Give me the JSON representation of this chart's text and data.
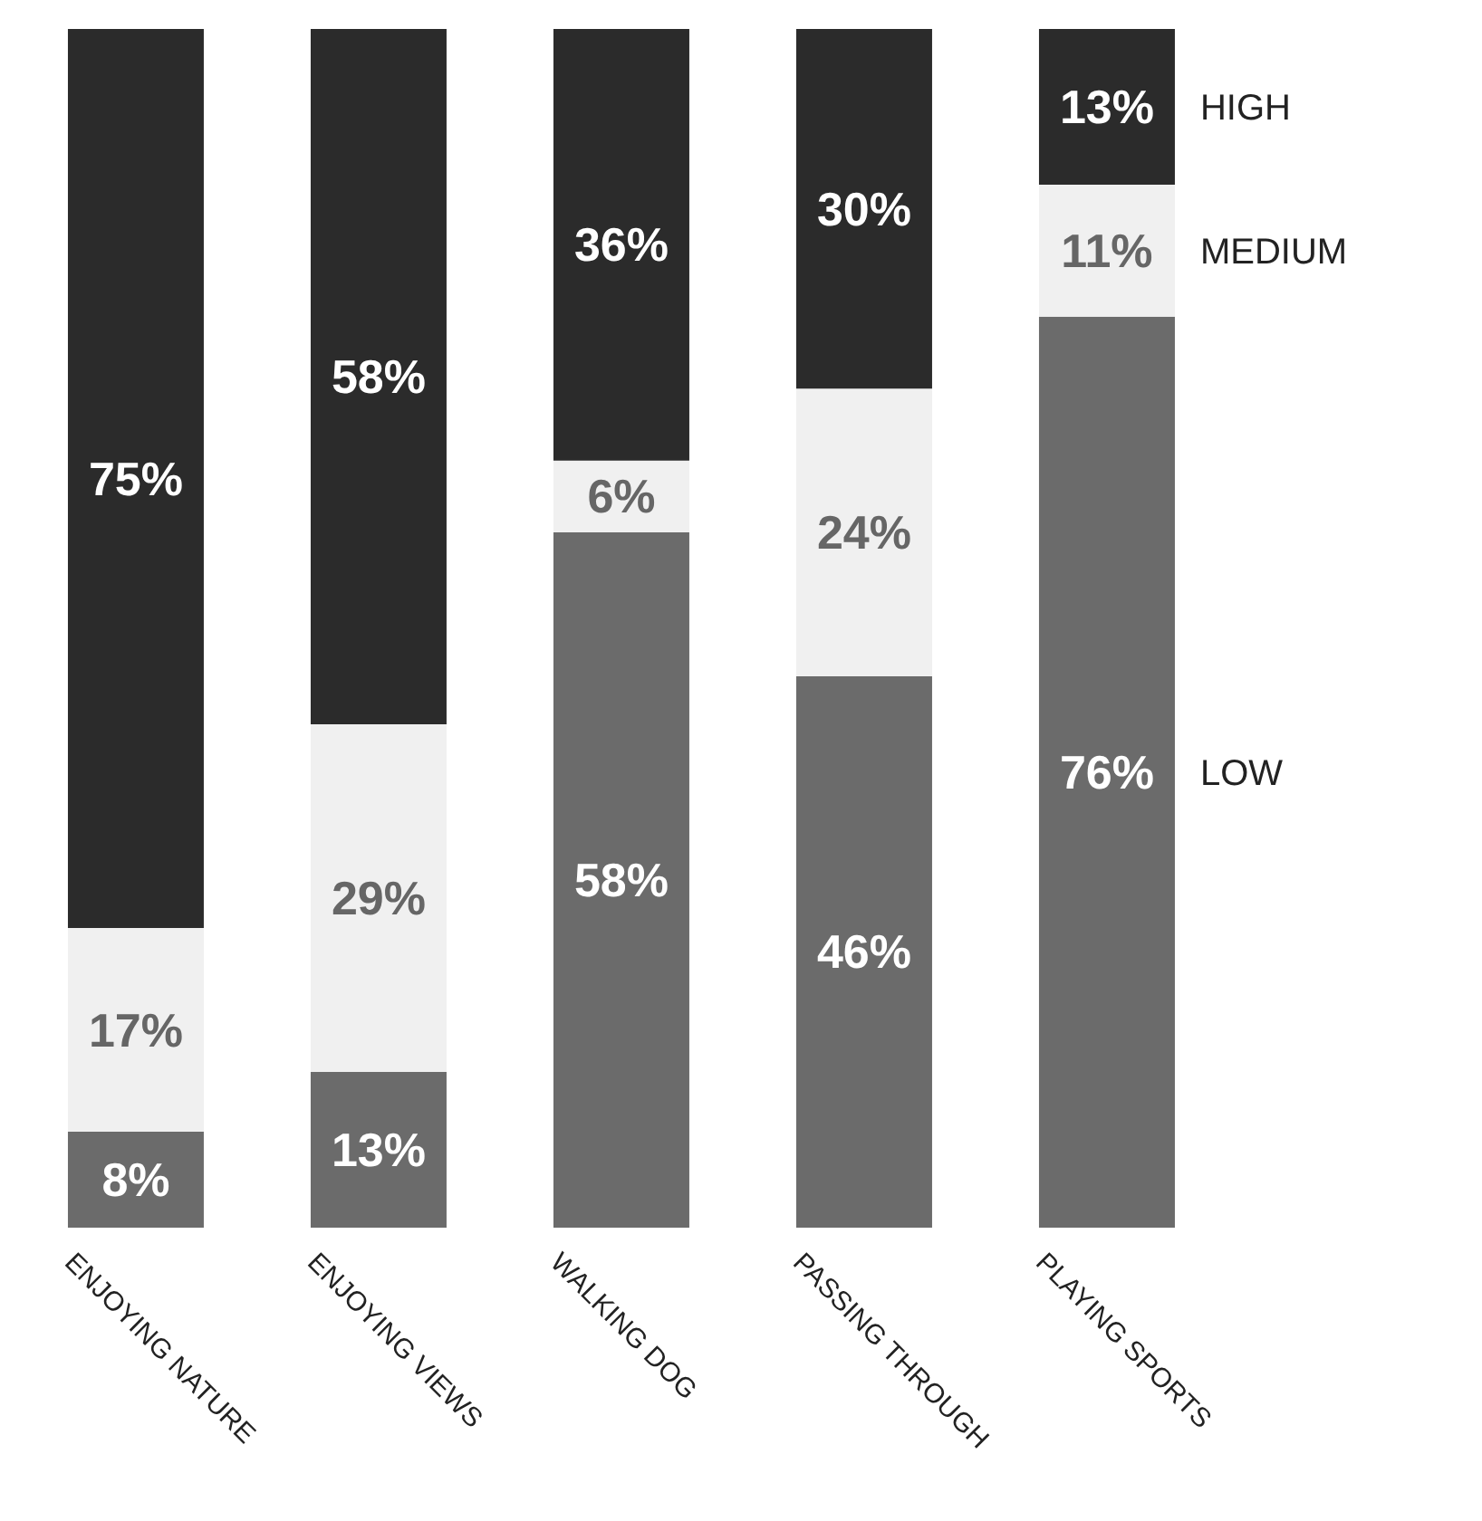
{
  "chart_data": {
    "type": "bar",
    "stacked": true,
    "categories": [
      "ENJOYING NATURE",
      "ENJOYING VIEWS",
      "WALKING DOG",
      "PASSING THROUGH",
      "PLAYING SPORTS"
    ],
    "series": [
      {
        "name": "LOW",
        "color": "#6b6b6b",
        "values": [
          8,
          13,
          58,
          46,
          76
        ],
        "value_labels": [
          "8%",
          "13%",
          "58%",
          "46%",
          "76%"
        ]
      },
      {
        "name": "MEDIUM",
        "color": "#f0f0f0",
        "values": [
          17,
          29,
          6,
          24,
          11
        ],
        "value_labels": [
          "17%",
          "29%",
          "6%",
          "24%",
          "11%"
        ]
      },
      {
        "name": "HIGH",
        "color": "#2b2b2b",
        "values": [
          75,
          58,
          36,
          30,
          13
        ],
        "value_labels": [
          "75%",
          "58%",
          "36%",
          "30%",
          "13%"
        ]
      }
    ]
  }
}
